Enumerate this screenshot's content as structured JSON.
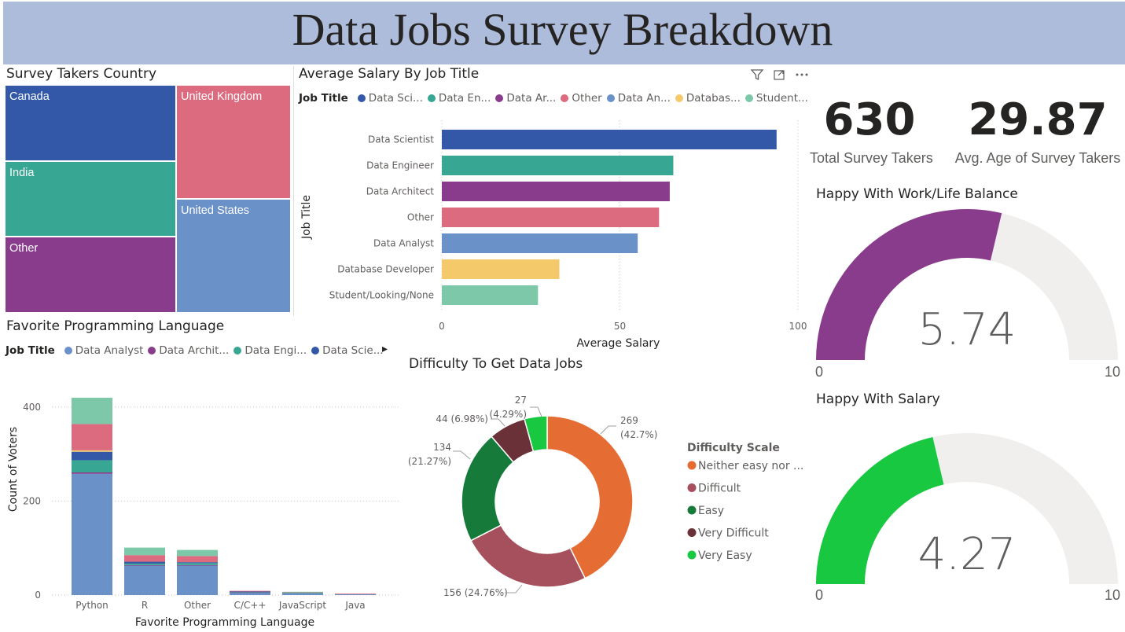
{
  "header": {
    "title": "Data Jobs Survey Breakdown"
  },
  "treemap": {
    "title": "Survey Takers Country",
    "tiles": [
      {
        "label": "Canada",
        "color": "#3358a8"
      },
      {
        "label": "United Kingdom",
        "color": "#dd6b7f"
      },
      {
        "label": "India",
        "color": "#37a794"
      },
      {
        "label": "United States",
        "color": "#6b91c9"
      },
      {
        "label": "Other",
        "color": "#8a3c8c"
      }
    ]
  },
  "salary_chart": {
    "title": "Average Salary By Job Title",
    "legend_title": "Job Title",
    "legend_items": [
      {
        "label": "Data Sci...",
        "color": "#3358a8"
      },
      {
        "label": "Data En...",
        "color": "#37a794"
      },
      {
        "label": "Data Ar...",
        "color": "#8a3c8c"
      },
      {
        "label": "Other",
        "color": "#dd6b7f"
      },
      {
        "label": "Data An...",
        "color": "#6b91c9"
      },
      {
        "label": "Databas...",
        "color": "#f4c96a"
      },
      {
        "label": "Student...",
        "color": "#7dc8a8"
      }
    ]
  },
  "language_chart": {
    "title": "Favorite Programming Language",
    "legend_title": "Job Title",
    "legend_items": [
      {
        "label": "Data Analyst",
        "color": "#6b91c9"
      },
      {
        "label": "Data Archit...",
        "color": "#8a3c8c"
      },
      {
        "label": "Data Engi...",
        "color": "#37a794"
      },
      {
        "label": "Data Scie...",
        "color": "#3358a8"
      }
    ],
    "legend_arrow": "▸"
  },
  "difficulty_chart": {
    "title": "Difficulty To Get Data Jobs",
    "legend_title": "Difficulty Scale",
    "legend_items": [
      {
        "label": "Neither easy nor ...",
        "color": "#e56c33"
      },
      {
        "label": "Difficult",
        "color": "#a64f5d"
      },
      {
        "label": "Easy",
        "color": "#167a3b"
      },
      {
        "label": "Very Difficult",
        "color": "#6b3138"
      },
      {
        "label": "Very Easy",
        "color": "#18c840"
      }
    ]
  },
  "kpis": {
    "total_value": "630",
    "total_label": "Total Survey Takers",
    "age_value": "29.87",
    "age_label": "Avg. Age of Survey Takers"
  },
  "gauge_worklife": {
    "title": "Happy With Work/Life Balance",
    "value": 5.74,
    "value_text": "5.74",
    "min": "0",
    "max": "10",
    "fill_color": "#8a3c8c",
    "track_color": "#f0efee"
  },
  "gauge_salary": {
    "title": "Happy With Salary",
    "value": 4.27,
    "value_text": "4.27",
    "min": "0",
    "max": "10",
    "fill_color": "#18c840",
    "track_color": "#f0efee"
  },
  "chart_data": [
    {
      "type": "bar",
      "orientation": "horizontal",
      "title": "Average Salary By Job Title",
      "xlabel": "Average Salary",
      "ylabel": "Job Title",
      "categories": [
        "Data Scientist",
        "Data Engineer",
        "Data Architect",
        "Other",
        "Data Analyst",
        "Database Developer",
        "Student/Looking/None"
      ],
      "values": [
        94,
        65,
        64,
        61,
        55,
        33,
        27
      ],
      "colors": [
        "#3358a8",
        "#37a794",
        "#8a3c8c",
        "#dd6b7f",
        "#6b91c9",
        "#f4c96a",
        "#7dc8a8"
      ],
      "xlim": [
        0,
        100
      ],
      "xticks": [
        "0",
        "50",
        "100"
      ],
      "grid": true
    },
    {
      "type": "bar",
      "stacked": true,
      "title": "Favorite Programming Language",
      "xlabel": "Favorite Programming Language",
      "ylabel": "Count of Voters",
      "categories": [
        "Python",
        "R",
        "Other",
        "C/C++",
        "JavaScript",
        "Java"
      ],
      "series": [
        {
          "name": "Data Analyst",
          "color": "#6b91c9",
          "values": [
            258,
            63,
            63,
            5,
            4,
            2
          ]
        },
        {
          "name": "Data Architect",
          "color": "#8a3c8c",
          "values": [
            3,
            1,
            1,
            1,
            0,
            0
          ]
        },
        {
          "name": "Data Engineer",
          "color": "#37a794",
          "values": [
            26,
            3,
            4,
            1,
            1,
            0
          ]
        },
        {
          "name": "Data Scientist",
          "color": "#3358a8",
          "values": [
            18,
            4,
            2,
            1,
            0,
            0
          ]
        },
        {
          "name": "Database Developer",
          "color": "#f4c96a",
          "values": [
            3,
            0,
            0,
            0,
            0,
            0
          ]
        },
        {
          "name": "Other",
          "color": "#dd6b7f",
          "values": [
            56,
            14,
            13,
            1,
            1,
            1
          ]
        },
        {
          "name": "Student/Looking/None",
          "color": "#7dc8a8",
          "values": [
            56,
            16,
            13,
            0,
            1,
            0
          ]
        }
      ],
      "ylim": [
        0,
        440
      ],
      "yticks": [
        "0",
        "200",
        "400"
      ],
      "grid": true
    },
    {
      "type": "pie",
      "donut": true,
      "title": "Difficulty To Get Data Jobs",
      "legend_title": "Difficulty Scale",
      "slices": [
        {
          "label": "Neither easy nor ...",
          "value": 269,
          "pct": "42.7%",
          "color": "#e56c33"
        },
        {
          "label": "Difficult",
          "value": 156,
          "pct": "24.76%",
          "color": "#a64f5d"
        },
        {
          "label": "Easy",
          "value": 134,
          "pct": "21.27%",
          "color": "#167a3b"
        },
        {
          "label": "Very Difficult",
          "value": 44,
          "pct": "6.98%",
          "color": "#6b3138"
        },
        {
          "label": "Very Easy",
          "value": 27,
          "pct": "4.29%",
          "color": "#18c840"
        }
      ],
      "data_labels": [
        "269",
        "(42.7%)",
        "156 (24.76%)",
        "134",
        "(21.27%)",
        "44 (6.98%)",
        "27",
        "(4.29%)"
      ]
    }
  ]
}
